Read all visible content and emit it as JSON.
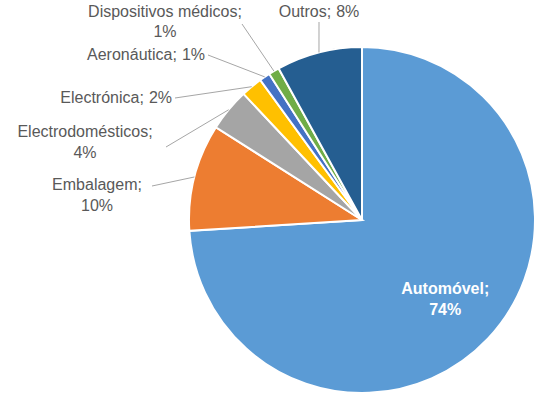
{
  "chart_data": {
    "type": "pie",
    "categories": [
      "Automóvel;",
      "Embalagem;",
      "Electrodomésticos;",
      "Electrónica;",
      "Aeronáutica;",
      "Dispositivos médicos;",
      "Outros;"
    ],
    "values": [
      74,
      10,
      4,
      2,
      1,
      1,
      8
    ],
    "value_labels": [
      "74%",
      "10%",
      "4%",
      "2%",
      "1%",
      "1%",
      "8%"
    ],
    "colors": [
      "#5b9bd5",
      "#ed7d31",
      "#a5a5a5",
      "#ffc000",
      "#4472c4",
      "#70ad47",
      "#255e91"
    ],
    "data_labels": true
  }
}
